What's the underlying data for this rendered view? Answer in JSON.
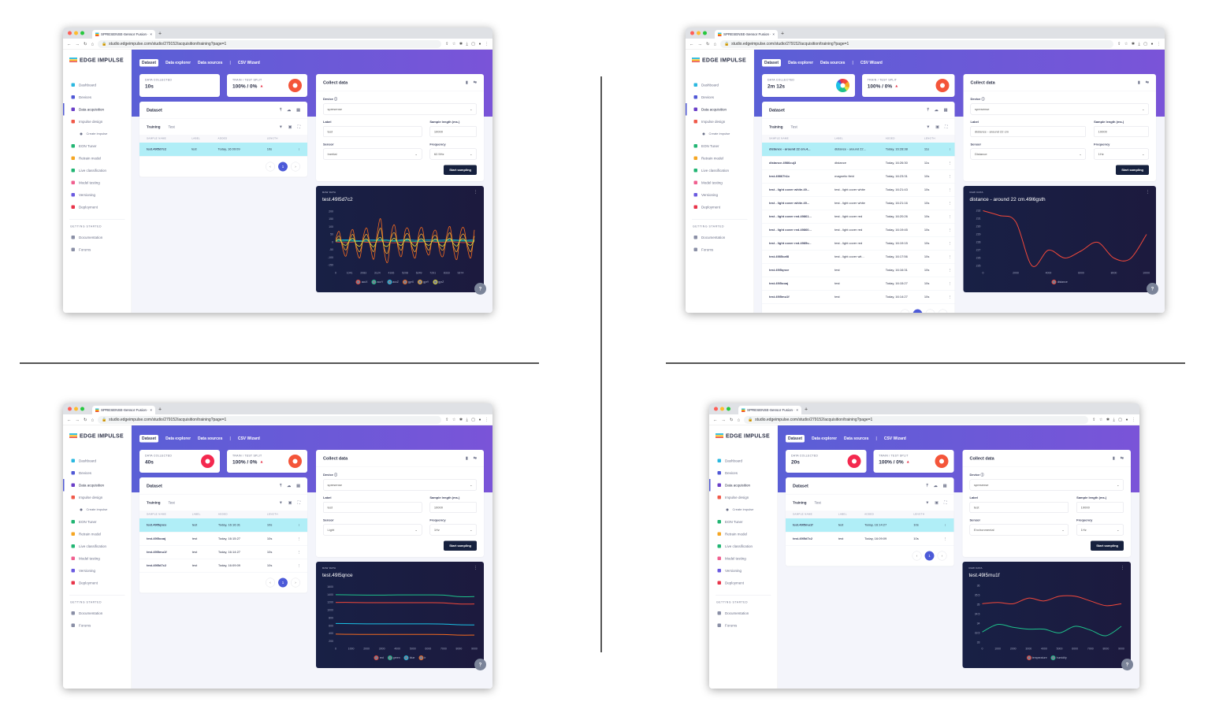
{
  "common": {
    "browser": {
      "tab_title": "SPRESENSE-Sensor Fusion - I",
      "url": "studio.edgeimpulse.com/studio/279152/acquisition/training?page=1"
    },
    "logo": "EDGE IMPULSE",
    "sidebar": {
      "items": [
        {
          "label": "Dashboard",
          "color": "#2bb8e0"
        },
        {
          "label": "Devices",
          "color": "#5058d6"
        },
        {
          "label": "Data acquisition",
          "color": "#6a3fc8",
          "active": true
        },
        {
          "label": "Impulse design",
          "color": "#f05a4a"
        },
        {
          "label": "Create impulse",
          "color": "#6b7088",
          "sub": true
        },
        {
          "label": "EON Tuner",
          "color": "#22b573"
        },
        {
          "label": "Retrain model",
          "color": "#f5a623"
        },
        {
          "label": "Live classification",
          "color": "#22b573"
        },
        {
          "label": "Model testing",
          "color": "#f06090"
        },
        {
          "label": "Versioning",
          "color": "#6a5ae0"
        },
        {
          "label": "Deployment",
          "color": "#e8344a"
        }
      ],
      "section": "GETTING STARTED",
      "footer": [
        {
          "label": "Documentation"
        },
        {
          "label": "Forums"
        }
      ]
    },
    "nav_tabs": [
      "Dataset",
      "Data explorer",
      "Data sources",
      "CSV Wizard"
    ],
    "data_collected_label": "DATA COLLECTED",
    "split_label": "TRAIN / TEST SPLIT",
    "split_value": "100% / 0%",
    "dataset_title": "Dataset",
    "training_tab": "Training",
    "test_tab": "Test",
    "columns": [
      "SAMPLE NAME",
      "LABEL",
      "ADDED",
      "LENGTH"
    ],
    "collect_title": "Collect data",
    "device_label": "Device ⓘ",
    "label_label": "Label",
    "length_label": "Sample length (ms.)",
    "sensor_label": "Sensor",
    "frequency_label": "Frequency",
    "start_button": "Start sampling",
    "raw_label": "RAW DATA"
  },
  "screens": [
    {
      "data_collected": "10s",
      "collected_donut": "none",
      "rows": [
        {
          "name": "test.49l5d7c2",
          "label": "test",
          "added": "Today, 16:09:09",
          "length": "10s"
        }
      ],
      "pages": [
        "1"
      ],
      "form": {
        "device": "spresense",
        "label": "test",
        "length": "10000",
        "sensor": "Inertial",
        "frequency": "62.5Hz"
      },
      "raw_title": "test.49l5d7c2"
    },
    {
      "data_collected": "2m 12s",
      "collected_donut": "multi",
      "rows": [
        {
          "name": "distance - around 22 cm.4...",
          "label": "distance - around 22...",
          "added": "Today, 16:28:38",
          "length": "11s"
        },
        {
          "name": "distance.4986cuj3",
          "label": "distance",
          "added": "Today, 16:26:30",
          "length": "11s"
        },
        {
          "name": "test.49867h1c",
          "label": "magnetic field",
          "added": "Today, 16:23:31",
          "length": "10s"
        },
        {
          "name": "test - light cover white.49...",
          "label": "test - light cover white",
          "added": "Today, 16:21:43",
          "length": "10s"
        },
        {
          "name": "test - light cover white.49...",
          "label": "test - light cover white",
          "added": "Today, 16:21:16",
          "length": "10s"
        },
        {
          "name": "test - light cover red.49861...",
          "label": "test - light cover red",
          "added": "Today, 16:20:26",
          "length": "10s"
        },
        {
          "name": "test - light cover red.49860...",
          "label": "test - light cover red",
          "added": "Today, 16:19:45",
          "length": "10s"
        },
        {
          "name": "test - light cover red.4985v...",
          "label": "test - light cover red",
          "added": "Today, 16:19:15",
          "length": "10s"
        },
        {
          "name": "test.4985caf8",
          "label": "test - light cover wit...",
          "added": "Today, 16:17:56",
          "length": "10s"
        },
        {
          "name": "test.49l5qnce",
          "label": "test",
          "added": "Today, 16:16:31",
          "length": "10s"
        },
        {
          "name": "test.49l5ooaj",
          "label": "test",
          "added": "Today, 16:15:27",
          "length": "10s"
        },
        {
          "name": "test.49l5mu1f",
          "label": "test",
          "added": "Today, 16:14:27",
          "length": "10s"
        }
      ],
      "pages": [
        "1",
        "2"
      ],
      "form": {
        "device": "spresense",
        "label": "distance - around 22 cm",
        "length": "10000",
        "sensor": "Distance",
        "frequency": "1Hz"
      },
      "raw_title": "distance - around 22 cm.49l6gsth"
    },
    {
      "data_collected": "40s",
      "collected_donut": "red",
      "rows": [
        {
          "name": "test.49l5qnce",
          "label": "test",
          "added": "Today, 16:16:31",
          "length": "10s"
        },
        {
          "name": "test.49l5ooaj",
          "label": "test",
          "added": "Today, 16:15:27",
          "length": "10s"
        },
        {
          "name": "test.49l5mu1f",
          "label": "test",
          "added": "Today, 16:14:27",
          "length": "10s"
        },
        {
          "name": "test.49l5d7c2",
          "label": "test",
          "added": "Today, 16:09:09",
          "length": "10s"
        }
      ],
      "pages": [
        "1"
      ],
      "form": {
        "device": "spresense",
        "label": "test",
        "length": "10000",
        "sensor": "Light",
        "frequency": "1Hz"
      },
      "raw_title": "test.49l5qnce"
    },
    {
      "data_collected": "20s",
      "collected_donut": "red",
      "rows": [
        {
          "name": "test.49l5mu1f",
          "label": "test",
          "added": "Today, 16:14:27",
          "length": "10s"
        },
        {
          "name": "test.49l5d7c2",
          "label": "test",
          "added": "Today, 16:09:09",
          "length": "10s"
        }
      ],
      "pages": [
        "1"
      ],
      "form": {
        "device": "spresense",
        "label": "test",
        "length": "10000",
        "sensor": "Environmental",
        "frequency": "1Hz"
      },
      "raw_title": "test.49l5mu1f"
    }
  ],
  "chart_data": [
    {
      "type": "line",
      "xlim": [
        0,
        10416
      ],
      "ylim": [
        -165,
        215
      ],
      "xticks": [
        "0",
        "1041",
        "2083",
        "3124",
        "4166",
        "5208",
        "6249",
        "7291",
        "8333",
        "9374"
      ],
      "xtick_values": [
        0,
        1041,
        2083,
        3124,
        4166,
        5208,
        6249,
        7291,
        8333,
        9374
      ],
      "yticks": [
        -150,
        -100,
        -50,
        0,
        50,
        100,
        150,
        200
      ],
      "series": [
        {
          "name": "accX",
          "color": "#f2483a",
          "values": [
            2,
            -3,
            4,
            -2,
            3,
            -4,
            2,
            -3,
            4,
            -2,
            3,
            -3,
            2
          ]
        },
        {
          "name": "accY",
          "color": "#1ec28b",
          "values": [
            6,
            8,
            5,
            7,
            9,
            6,
            8,
            5,
            7,
            6,
            8,
            7,
            6
          ]
        },
        {
          "name": "accZ",
          "color": "#1bc1e6",
          "values": [
            12,
            15,
            10,
            14,
            16,
            11,
            15,
            12,
            14,
            13,
            15,
            12,
            14
          ]
        },
        {
          "name": "gyrX",
          "color": "#f46a1f",
          "values": [
            20,
            70,
            -40,
            -90,
            30,
            80,
            -50,
            -100,
            40,
            90,
            -30,
            -110,
            60,
            150,
            -60,
            -130,
            50,
            110,
            -40,
            -90,
            70,
            80,
            -50,
            -100,
            60,
            90,
            -40,
            -80,
            50,
            70,
            -60,
            -90,
            40,
            100,
            -50,
            -110,
            60,
            90,
            -40,
            -100,
            80
          ]
        },
        {
          "name": "gyrY",
          "color": "#f0a830",
          "values": [
            10,
            40,
            -20,
            -50,
            15,
            50,
            -30,
            -60,
            20,
            50,
            -20,
            -60,
            30,
            90,
            -40,
            -70,
            30,
            60,
            -20,
            -50,
            40,
            50,
            -30,
            -60,
            30,
            50,
            -20,
            -50,
            30,
            40,
            -30,
            -50,
            20,
            60,
            -30,
            -60,
            30,
            50,
            -20,
            -60,
            40
          ]
        },
        {
          "name": "gyrZ",
          "color": "#e8e03a",
          "values": [
            5,
            20,
            -10,
            -20,
            10,
            25,
            -15,
            -25,
            10,
            20,
            -10,
            -30,
            15,
            30,
            -20,
            -25,
            10,
            25,
            -10,
            -20,
            15,
            20,
            -10,
            -25,
            15,
            20,
            -10,
            -20,
            10,
            20,
            -15,
            -25,
            10,
            25,
            -10,
            -25,
            15,
            20,
            -10,
            -20,
            15
          ]
        }
      ]
    },
    {
      "type": "line",
      "xlim": [
        0,
        10000
      ],
      "ylim": [
        224.8,
        232.2
      ],
      "xticks": [
        "0",
        "2000",
        "4000",
        "6000",
        "8000",
        "10000"
      ],
      "xtick_values": [
        0,
        2000,
        4000,
        6000,
        8000,
        10000
      ],
      "yticks": [
        225,
        226,
        227,
        228,
        229,
        230,
        231,
        232
      ],
      "series": [
        {
          "name": "distance",
          "color": "#f2483a",
          "values": [
            232,
            231.4,
            230.6,
            225,
            227,
            226,
            226.9,
            228,
            226,
            225.9,
            229
          ]
        }
      ]
    },
    {
      "type": "line",
      "xlim": [
        0,
        9000
      ],
      "ylim": [
        150,
        1650
      ],
      "xticks": [
        "0",
        "1000",
        "2000",
        "3000",
        "4000",
        "5000",
        "6000",
        "7000",
        "8000",
        "9000"
      ],
      "xtick_values": [
        0,
        1000,
        2000,
        3000,
        4000,
        5000,
        6000,
        7000,
        8000,
        9000
      ],
      "yticks": [
        200,
        400,
        600,
        800,
        1000,
        1200,
        1400,
        1600
      ],
      "series": [
        {
          "name": "red",
          "color": "#f2483a",
          "values": [
            1200,
            1200,
            1195,
            1195,
            1195,
            1195,
            1195,
            1190,
            1160,
            1160
          ]
        },
        {
          "name": "green",
          "color": "#1ec28b",
          "values": [
            1400,
            1395,
            1390,
            1390,
            1395,
            1395,
            1395,
            1390,
            1350,
            1350
          ]
        },
        {
          "name": "blue",
          "color": "#1bc1e6",
          "values": [
            660,
            655,
            650,
            650,
            650,
            650,
            650,
            645,
            625,
            620
          ]
        },
        {
          "name": "ir",
          "color": "#f46a1f",
          "values": [
            385,
            380,
            378,
            378,
            378,
            378,
            378,
            375,
            360,
            360
          ]
        }
      ]
    },
    {
      "type": "line",
      "xlim": [
        0,
        9000
      ],
      "ylim": [
        32.95,
        36.05
      ],
      "xticks": [
        "0",
        "1000",
        "2000",
        "3000",
        "4000",
        "5000",
        "6000",
        "7000",
        "8000",
        "9000"
      ],
      "xtick_values": [
        0,
        1000,
        2000,
        3000,
        4000,
        5000,
        6000,
        7000,
        8000,
        9000
      ],
      "yticks": [
        33.0,
        33.5,
        34.0,
        34.5,
        35.0,
        35.5,
        36.0
      ],
      "series": [
        {
          "name": "temperature",
          "color": "#f2483a",
          "values": [
            35.05,
            35.12,
            35.05,
            35.35,
            35.2,
            35.45,
            35.45,
            35.2,
            34.95,
            35.05
          ]
        },
        {
          "name": "humidity",
          "color": "#1ec28b",
          "values": [
            33.55,
            33.95,
            33.8,
            33.7,
            33.7,
            33.5,
            33.85,
            33.65,
            33.35,
            33.85
          ]
        }
      ]
    }
  ]
}
